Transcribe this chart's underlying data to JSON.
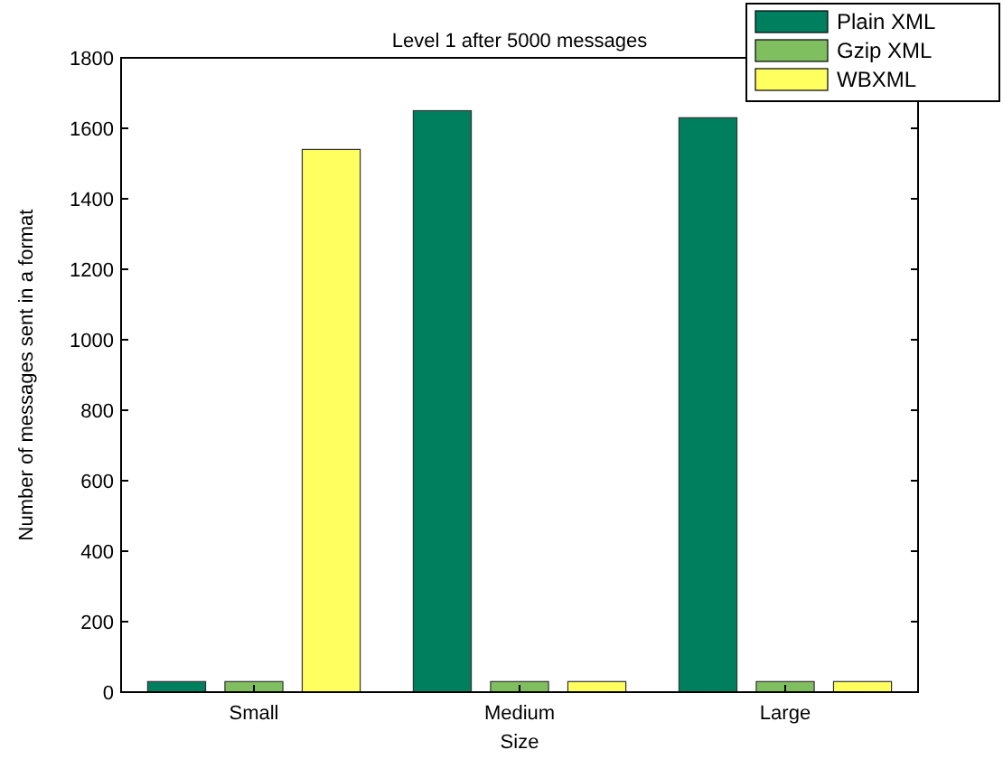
{
  "chart_data": {
    "type": "bar",
    "title": "Level 1 after 5000 messages",
    "xlabel": "Size",
    "ylabel": "Number of messages sent in a format",
    "categories": [
      "Small",
      "Medium",
      "Large"
    ],
    "series": [
      {
        "name": "Plain XML",
        "color": "#007f5f",
        "values": [
          30,
          1650,
          1630
        ]
      },
      {
        "name": "Gzip XML",
        "color": "#7fbf5f",
        "values": [
          30,
          30,
          30
        ]
      },
      {
        "name": "WBXML",
        "color": "#ffff5f",
        "values": [
          1540,
          30,
          30
        ]
      }
    ],
    "ylim": [
      0,
      1800
    ],
    "yticks": [
      0,
      200,
      400,
      600,
      800,
      1000,
      1200,
      1400,
      1600,
      1800
    ],
    "legend": "top right",
    "grid": false
  }
}
